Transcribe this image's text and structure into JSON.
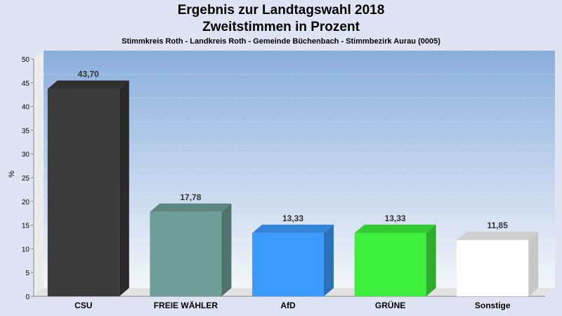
{
  "chart_data": {
    "type": "bar",
    "title": "Ergebnis zur Landtagswahl 2018",
    "subtitle": "Zweitstimmen in Prozent",
    "subtitle2": "Stimmkreis Roth - Landkreis Roth - Gemeinde Büchenbach - Stimmbezirk Aurau (0005)",
    "xlabel": "",
    "ylabel": "%",
    "ylim": [
      0,
      50
    ],
    "yticks": [
      "0",
      "5",
      "10",
      "15",
      "20",
      "25",
      "30",
      "35",
      "40",
      "45",
      "50"
    ],
    "grid": true,
    "categories": [
      "CSU",
      "FREIE WÄHLER",
      "AfD",
      "GRÜNE",
      "Sonstige"
    ],
    "values": [
      43.7,
      17.78,
      13.33,
      13.33,
      11.85
    ],
    "value_labels": [
      "43,70",
      "17,78",
      "13,33",
      "13,33",
      "11,85"
    ],
    "colors": [
      "#3a3a3a",
      "#6e9e98",
      "#3d9bff",
      "#3eef3e",
      "#ffffff"
    ]
  }
}
